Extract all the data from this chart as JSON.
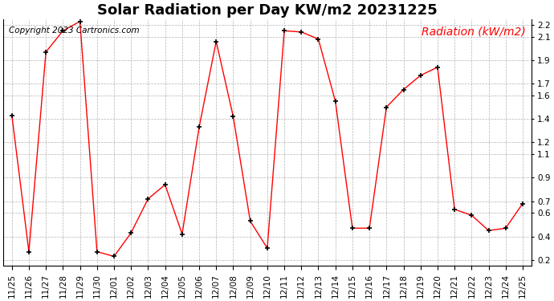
{
  "title": "Solar Radiation per Day KW/m2 20231225",
  "copyright_text": "Copyright 2023 Cartronics.com",
  "legend_label": "Radiation (kW/m2)",
  "dates": [
    "11/25",
    "11/26",
    "11/27",
    "11/28",
    "11/29",
    "11/30",
    "12/01",
    "12/02",
    "12/03",
    "12/04",
    "12/05",
    "12/06",
    "12/07",
    "12/08",
    "12/09",
    "12/10",
    "12/11",
    "12/12",
    "12/13",
    "12/14",
    "12/15",
    "12/16",
    "12/17",
    "12/18",
    "12/19",
    "12/20",
    "12/21",
    "12/22",
    "12/23",
    "12/24",
    "12/25"
  ],
  "values": [
    1.43,
    0.27,
    1.97,
    2.15,
    2.23,
    0.27,
    0.23,
    0.43,
    0.72,
    0.84,
    0.42,
    1.33,
    2.06,
    1.42,
    0.53,
    0.3,
    2.15,
    2.14,
    2.08,
    1.55,
    0.47,
    0.47,
    1.5,
    1.65,
    1.77,
    1.84,
    0.63,
    0.58,
    0.45,
    0.47,
    0.68
  ],
  "line_color": "red",
  "marker_color": "black",
  "marker": "+",
  "bg_color": "white",
  "grid_color": "#aaaaaa",
  "ylim": [
    0.15,
    2.25
  ],
  "yticks": [
    0.2,
    0.4,
    0.6,
    0.7,
    0.9,
    1.1,
    1.2,
    1.4,
    1.6,
    1.7,
    1.9,
    2.1,
    2.2
  ],
  "title_fontsize": 13,
  "copyright_fontsize": 7.5,
  "legend_fontsize": 10,
  "tick_fontsize": 7.5
}
